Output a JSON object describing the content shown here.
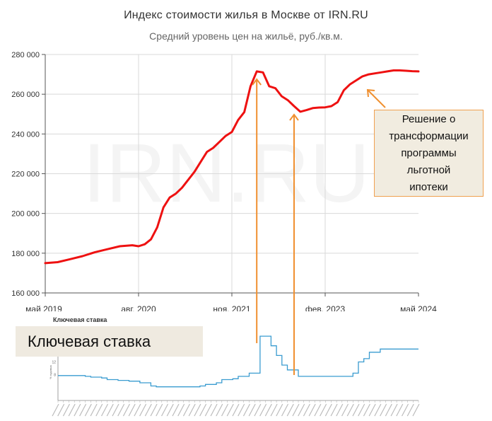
{
  "chart_data": [
    {
      "type": "line",
      "title": "Индекс стоимости жилья в Москве от IRN.RU",
      "subtitle": "Средний уровень цен на жильё, руб./кв.м.",
      "watermark": "IRN.RU",
      "ylim": [
        160000,
        280000
      ],
      "yticks": [
        160000,
        180000,
        200000,
        220000,
        240000,
        260000,
        280000
      ],
      "ytick_labels": [
        "160 000",
        "180 000",
        "200 000",
        "220 000",
        "240 000",
        "260 000",
        "280 000"
      ],
      "xlim": [
        "2019-05",
        "2024-05"
      ],
      "xticks": [
        "2019-05",
        "2020-08",
        "2021-11",
        "2023-02",
        "2024-05"
      ],
      "xtick_labels": [
        "май 2019",
        "авг. 2020",
        "ноя. 2021",
        "фев. 2023",
        "май 2024"
      ],
      "grid": true,
      "line_color": "#ee1111",
      "series": [
        {
          "x": [
            "2019-05",
            "2019-07",
            "2019-09",
            "2019-11",
            "2020-01",
            "2020-03",
            "2020-05",
            "2020-07",
            "2020-08",
            "2020-09",
            "2020-10",
            "2020-11",
            "2020-12",
            "2021-01",
            "2021-02",
            "2021-03",
            "2021-04",
            "2021-05",
            "2021-06",
            "2021-07",
            "2021-08",
            "2021-09",
            "2021-10",
            "2021-11",
            "2021-12",
            "2022-01",
            "2022-02",
            "2022-03",
            "2022-04",
            "2022-05",
            "2022-06",
            "2022-07",
            "2022-08",
            "2022-09",
            "2022-10",
            "2022-11",
            "2022-12",
            "2023-01",
            "2023-02",
            "2023-03",
            "2023-04",
            "2023-05",
            "2023-06",
            "2023-07",
            "2023-08",
            "2023-09",
            "2023-10",
            "2023-11",
            "2023-12",
            "2024-01",
            "2024-02",
            "2024-03",
            "2024-04",
            "2024-05"
          ],
          "values": [
            175000,
            175500,
            177000,
            178500,
            180500,
            182000,
            183500,
            184000,
            183500,
            184500,
            187000,
            193000,
            203000,
            208000,
            210000,
            213000,
            217000,
            221000,
            226000,
            231000,
            233000,
            236000,
            239000,
            241000,
            247000,
            251000,
            264000,
            271500,
            271000,
            264000,
            263000,
            259000,
            257000,
            254000,
            251200,
            252000,
            253000,
            253300,
            253400,
            254000,
            256000,
            262000,
            265000,
            267000,
            269000,
            270000,
            270500,
            271000,
            271500,
            272000,
            272000,
            271800,
            271600,
            271500
          ]
        }
      ],
      "annotations": [
        {
          "text": "Решение о\nтрансформации\nпрограммы\nльготной\nипотеки",
          "x": "2023-07",
          "y": 262000
        }
      ]
    },
    {
      "type": "line",
      "title": "Ключевая ставка",
      "label": "Ключевая ставка",
      "ylabel": "% годовых",
      "yticks": [
        8,
        12
      ],
      "ylim": [
        0,
        22
      ],
      "line_color": "#3a9cd0",
      "series": [
        {
          "x": [
            "2019-01",
            "2019-06",
            "2019-07",
            "2019-09",
            "2019-10",
            "2019-12",
            "2020-02",
            "2020-04",
            "2020-06",
            "2020-07",
            "2021-03",
            "2021-04",
            "2021-06",
            "2021-07",
            "2021-09",
            "2021-10",
            "2021-12",
            "2022-02",
            "2022-04",
            "2022-05",
            "2022-06",
            "2022-07",
            "2022-09",
            "2023-07",
            "2023-08",
            "2023-09",
            "2023-10",
            "2023-12",
            "2024-07"
          ],
          "values": [
            7.75,
            7.5,
            7.25,
            7.0,
            6.5,
            6.25,
            6.0,
            5.5,
            4.5,
            4.25,
            4.5,
            5.0,
            5.5,
            6.5,
            6.75,
            7.5,
            8.5,
            20.0,
            17.0,
            14.0,
            11.0,
            9.5,
            7.5,
            8.5,
            12.0,
            13.0,
            15.0,
            16.0,
            16.0
          ]
        }
      ]
    }
  ],
  "callout": {
    "text": "Решение о\nтрансформации\nпрограммы\nльготной\nипотеки"
  },
  "arrow_color": "#f09030"
}
